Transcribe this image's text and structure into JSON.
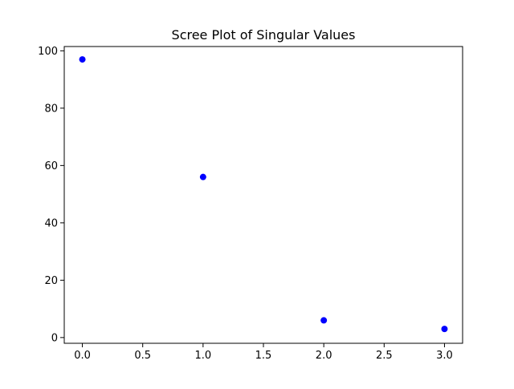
{
  "chart_data": {
    "type": "scatter",
    "title": "Scree Plot of Singular Values",
    "xlabel": "",
    "ylabel": "",
    "xlim": [
      -0.15,
      3.15
    ],
    "ylim": [
      -2.0,
      101.5
    ],
    "xticks": [
      0.0,
      0.5,
      1.0,
      1.5,
      2.0,
      2.5,
      3.0
    ],
    "xtick_labels": [
      "0.0",
      "0.5",
      "1.0",
      "1.5",
      "2.0",
      "2.5",
      "3.0"
    ],
    "yticks": [
      0,
      20,
      40,
      60,
      80,
      100
    ],
    "ytick_labels": [
      "0",
      "20",
      "40",
      "60",
      "80",
      "100"
    ],
    "grid": false,
    "series": [
      {
        "color": "#0000ff",
        "marker": "circle",
        "x": [
          0,
          1,
          2,
          3
        ],
        "y": [
          97,
          56,
          6,
          3
        ]
      }
    ]
  }
}
